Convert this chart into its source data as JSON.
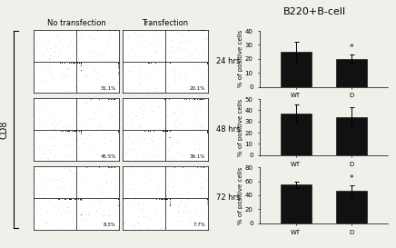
{
  "title": "B220+B-cell",
  "col_labels": [
    "No transfection",
    "Transfection"
  ],
  "row_labels": [
    "24 hrs",
    "48 hrs",
    "72 hrs"
  ],
  "percentages": [
    [
      "31.1%",
      "20.1%"
    ],
    [
      "45.5%",
      "39.1%"
    ],
    [
      "8.3%",
      "7.7%"
    ]
  ],
  "bar_data": [
    {
      "WT_mean": 25,
      "WT_err": 7,
      "D_mean": 20,
      "D_err": 3,
      "ylim": [
        0,
        40
      ],
      "yticks": [
        0,
        10,
        20,
        30,
        40
      ],
      "D_sig": true
    },
    {
      "WT_mean": 37,
      "WT_err": 8,
      "D_mean": 34,
      "D_err": 9,
      "ylim": [
        0,
        50
      ],
      "yticks": [
        0,
        10,
        20,
        30,
        40,
        50
      ],
      "D_sig": false
    },
    {
      "WT_mean": 55,
      "WT_err": 5,
      "D_mean": 47,
      "D_err": 7,
      "ylim": [
        0,
        80
      ],
      "yticks": [
        0,
        20,
        40,
        60,
        80
      ],
      "D_sig": true
    }
  ],
  "bar_color": "#111111",
  "bar_width": 0.55,
  "xlabel_WT": "WT",
  "xlabel_D": "D",
  "ylabel": "% of positive cells",
  "cd8_label": "CD8",
  "background_color": "#f0f0eb",
  "title_fontsize": 8,
  "axis_fontsize": 5,
  "tick_fontsize": 5
}
